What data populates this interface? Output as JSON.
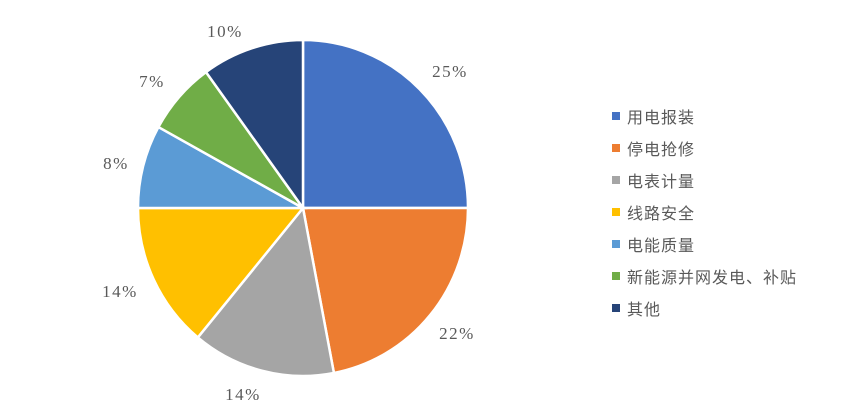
{
  "chart_data": {
    "type": "pie",
    "title": "",
    "categories": [
      "用电报装",
      "停电抢修",
      "电表计量",
      "线路安全",
      "电能质量",
      "新能源并网发电、补贴",
      "其他"
    ],
    "values": [
      25,
      22,
      14,
      14,
      8,
      7,
      10
    ],
    "data_labels": [
      "25%",
      "22%",
      "14%",
      "14%",
      "8%",
      "7%",
      "10%"
    ],
    "colors": [
      "#4472C4",
      "#ED7D31",
      "#A5A5A5",
      "#FFC000",
      "#5B9BD5",
      "#70AD47",
      "#264478"
    ],
    "slice_gap_color": "#FFFFFF",
    "start_angle_deg": 0,
    "direction": "clockwise",
    "legend_position": "right",
    "label_text_color": "#595959",
    "background_color": "#FFFFFF"
  }
}
